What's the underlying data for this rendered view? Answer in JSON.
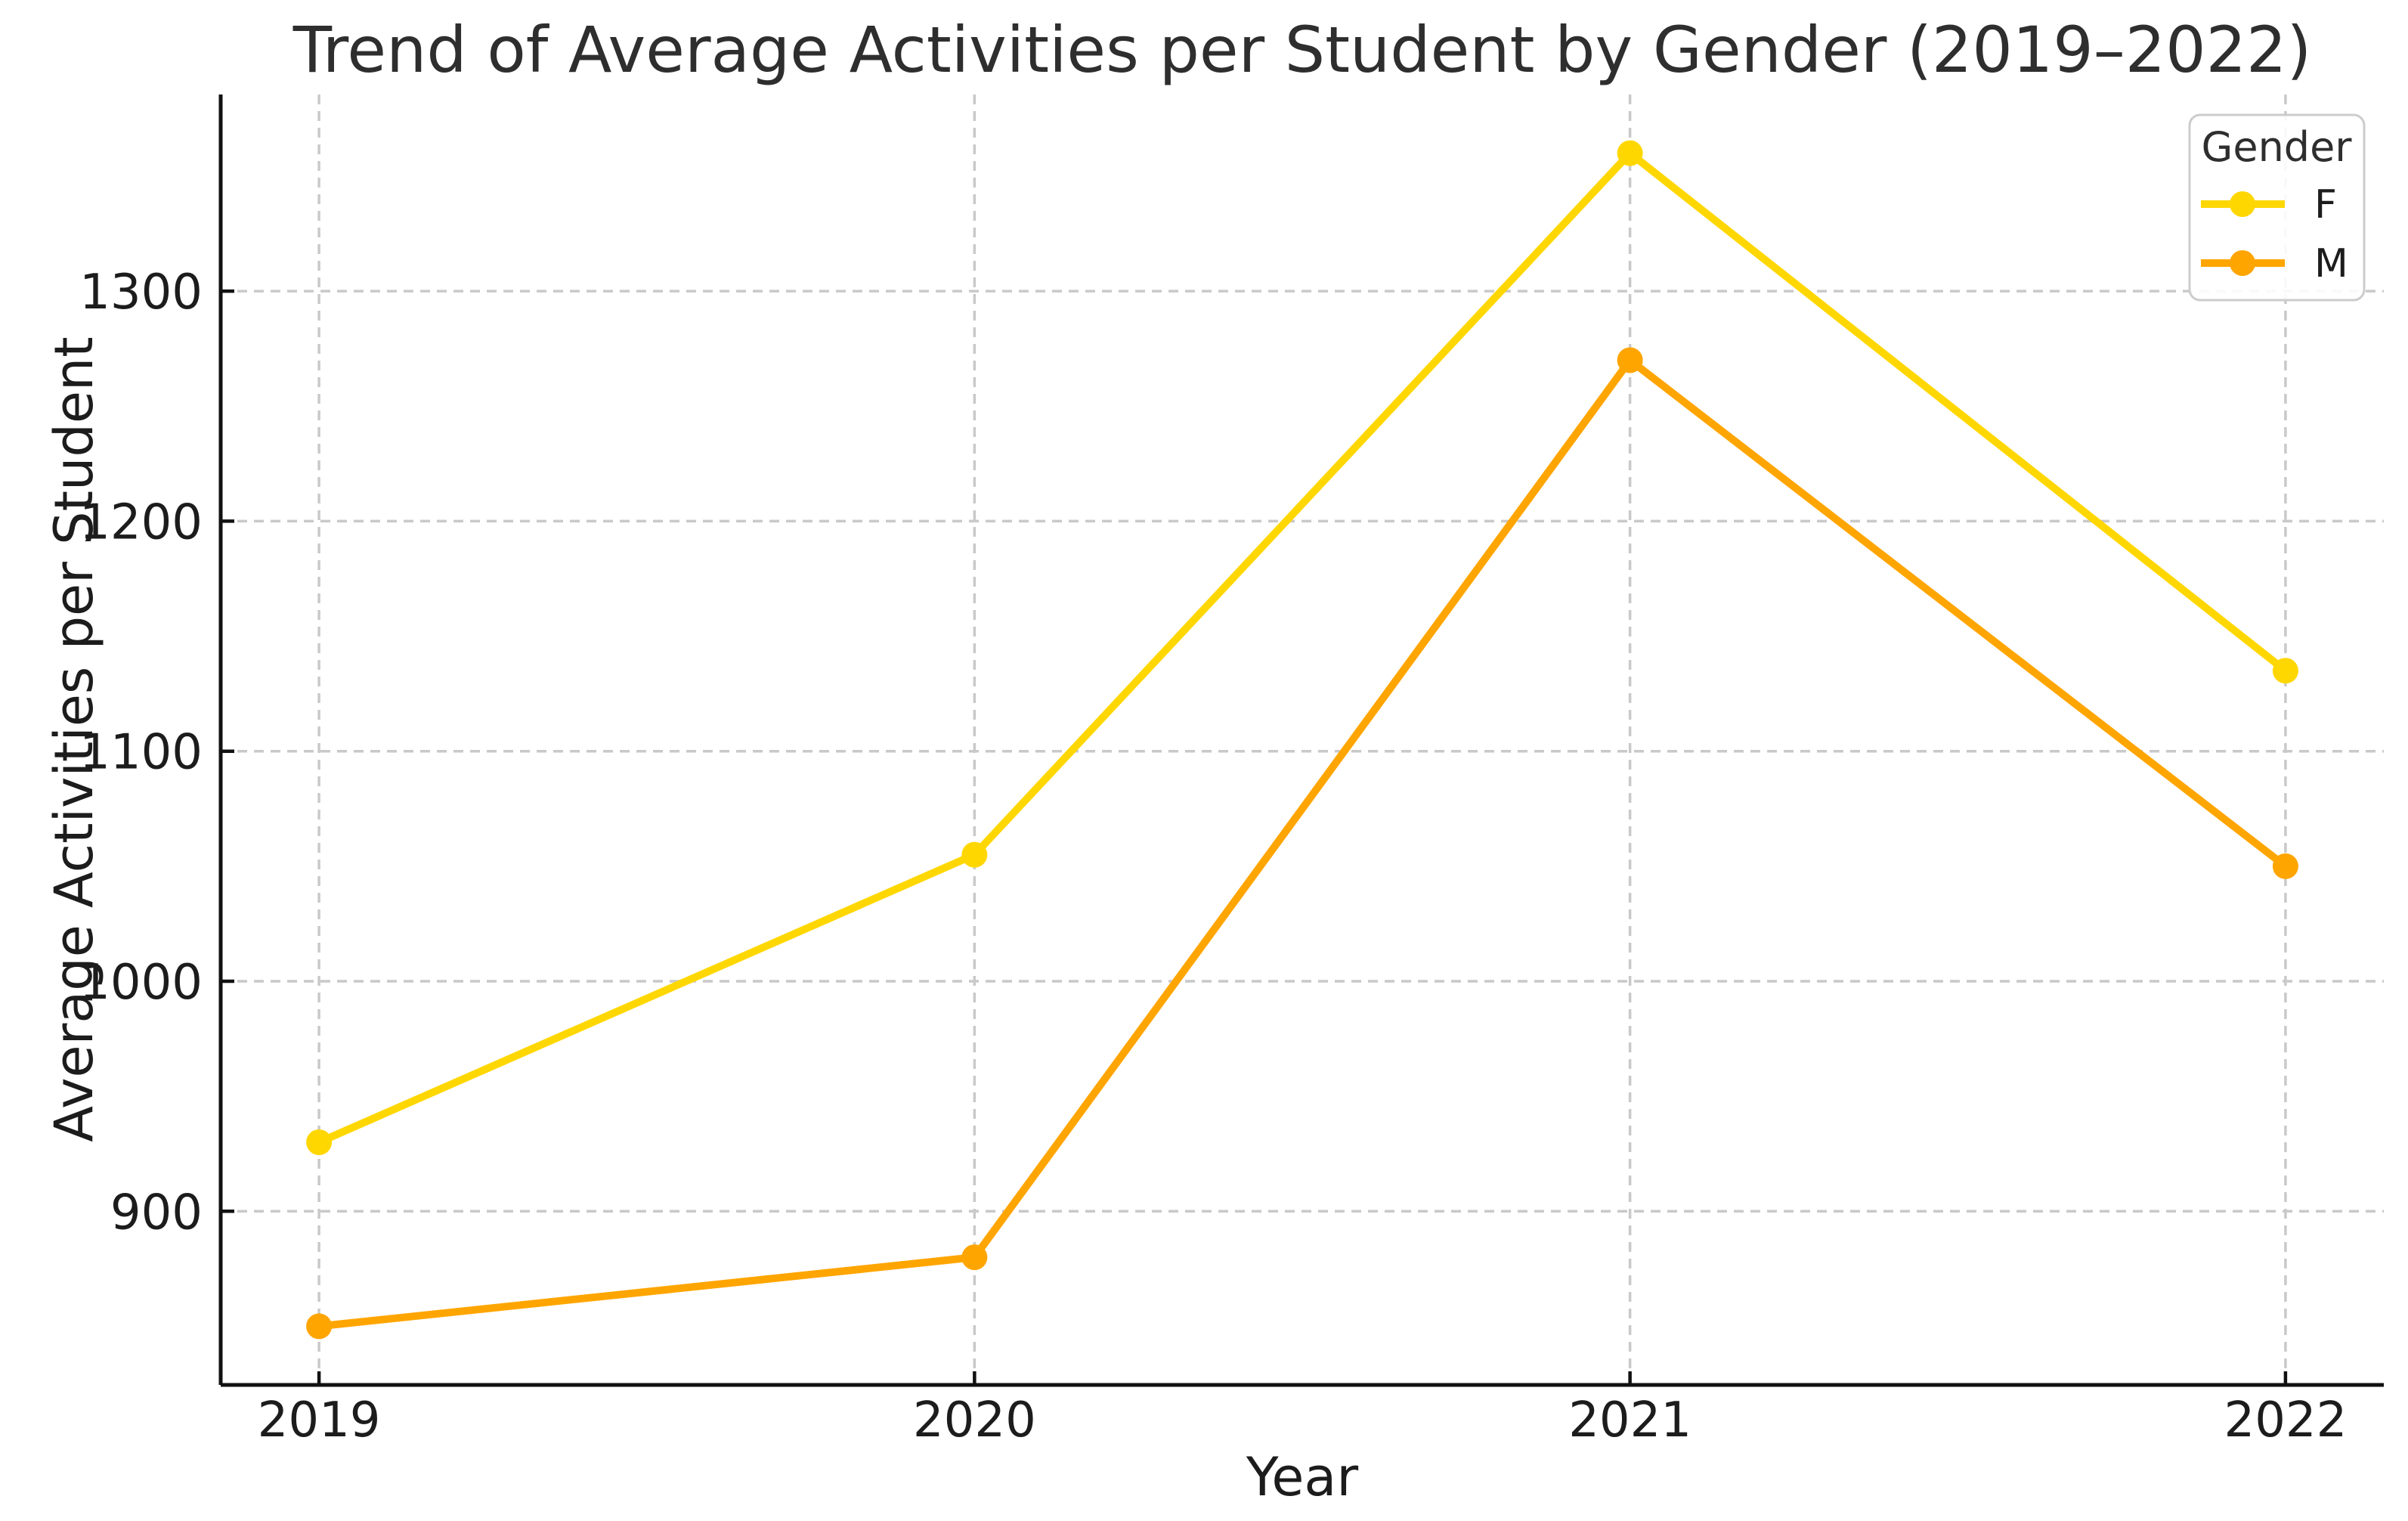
{
  "chart_data": {
    "type": "line",
    "title": "Trend of Average Activities per Student by Gender (2019–2022)",
    "xlabel": "Year",
    "ylabel": "Average Activities per Student",
    "categories": [
      "2019",
      "2020",
      "2021",
      "2022"
    ],
    "series": [
      {
        "name": "F",
        "color": "#FFD700",
        "values": [
          930,
          1055,
          1360,
          1135
        ]
      },
      {
        "name": "M",
        "color": "#FFA500",
        "values": [
          850,
          880,
          1270,
          1050
        ]
      }
    ],
    "legend": {
      "title": "Gender",
      "position": "upper right"
    },
    "yticks": [
      900,
      1000,
      1100,
      1200,
      1300
    ],
    "ylim": [
      824.5,
      1385.5
    ],
    "xlim": [
      -0.15,
      3.15
    ],
    "grid": "dashed",
    "marker": "o",
    "colors": {
      "grid": "#c9c9c9",
      "spine": "#111111",
      "text": "#1c1c1c",
      "legend_border": "#cccccc",
      "background": "#ffffff"
    }
  }
}
